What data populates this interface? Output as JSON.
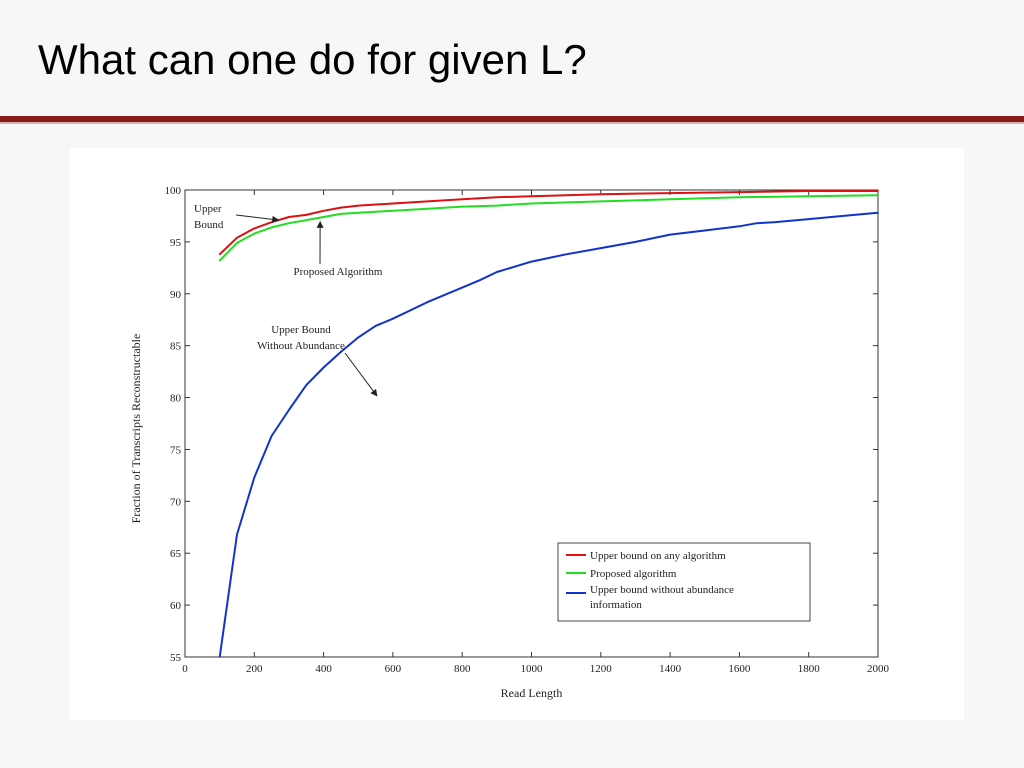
{
  "slide": {
    "title": "What can one do for given L?"
  },
  "colors": {
    "accent_rule": "#8b1a1a",
    "upper_bound": "#dd1111",
    "proposed": "#22dd22",
    "no_abundance": "#1133cc"
  },
  "chart_data": {
    "type": "line",
    "title": "",
    "xlabel": "Read Length",
    "ylabel": "Fraction of Transcripts Reconstructable",
    "xlim": [
      0,
      2000
    ],
    "ylim": [
      55,
      100
    ],
    "xticks": [
      0,
      200,
      400,
      600,
      800,
      1000,
      1200,
      1400,
      1600,
      1800,
      2000
    ],
    "yticks": [
      55,
      60,
      65,
      70,
      75,
      80,
      85,
      90,
      95,
      100
    ],
    "grid": false,
    "legend_position": "bottom-right",
    "series": [
      {
        "name": "Upper bound on any algorithm",
        "color": "#dd1111",
        "x": [
          100,
          150,
          200,
          250,
          300,
          350,
          400,
          450,
          500,
          600,
          700,
          800,
          900,
          1000,
          1200,
          1400,
          1600,
          1800,
          2000
        ],
        "y": [
          93.8,
          95.4,
          96.3,
          96.9,
          97.4,
          97.6,
          98.0,
          98.3,
          98.5,
          98.7,
          98.9,
          99.1,
          99.3,
          99.4,
          99.6,
          99.7,
          99.8,
          99.9,
          99.9
        ]
      },
      {
        "name": "Proposed algorithm",
        "color": "#22dd22",
        "x": [
          100,
          150,
          200,
          250,
          300,
          350,
          400,
          450,
          500,
          600,
          700,
          800,
          900,
          1000,
          1200,
          1400,
          1600,
          1800,
          2000
        ],
        "y": [
          93.2,
          94.9,
          95.8,
          96.4,
          96.8,
          97.1,
          97.4,
          97.7,
          97.8,
          98.0,
          98.2,
          98.4,
          98.5,
          98.7,
          98.9,
          99.1,
          99.3,
          99.4,
          99.5
        ]
      },
      {
        "name": "Upper bound without abundance information",
        "color": "#1133cc",
        "x": [
          100,
          150,
          200,
          250,
          300,
          350,
          400,
          450,
          500,
          550,
          600,
          700,
          800,
          850,
          900,
          1000,
          1100,
          1200,
          1300,
          1400,
          1500,
          1600,
          1650,
          1700,
          1800,
          1900,
          2000
        ],
        "y": [
          55.0,
          66.8,
          72.3,
          76.3,
          78.8,
          81.2,
          82.9,
          84.4,
          85.8,
          86.9,
          87.6,
          89.2,
          90.6,
          91.3,
          92.1,
          93.1,
          93.8,
          94.4,
          95.0,
          95.7,
          96.1,
          96.5,
          96.8,
          96.9,
          97.2,
          97.5,
          97.8
        ]
      }
    ],
    "annotations": [
      {
        "id": "upper",
        "lines": [
          "Upper",
          "Bound"
        ],
        "target_series": 0,
        "arrow_to_x": 270
      },
      {
        "id": "proposed",
        "lines": [
          "Proposed Algorithm"
        ],
        "target_series": 1,
        "arrow_to_x": 390
      },
      {
        "id": "noabund",
        "lines": [
          "Upper Bound",
          "Without Abundance"
        ],
        "target_series": 2,
        "arrow_to_x": 560
      }
    ]
  }
}
